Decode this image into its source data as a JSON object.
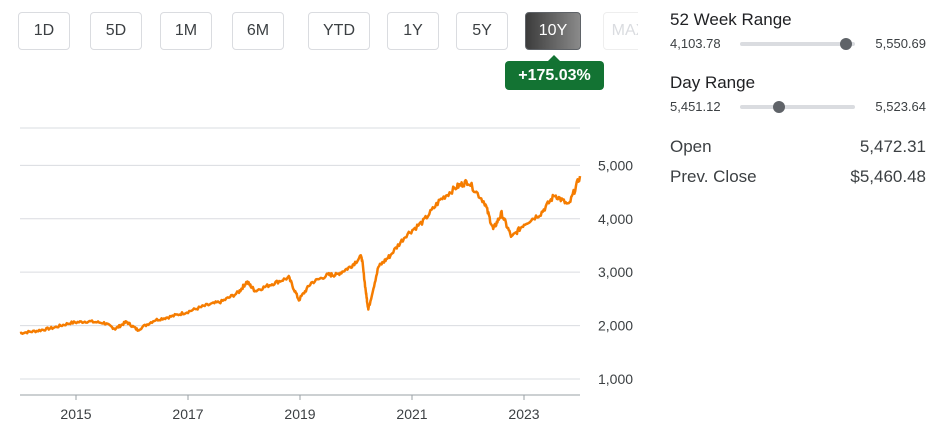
{
  "range_buttons": [
    {
      "label": "1D",
      "active": false
    },
    {
      "label": "5D",
      "active": false
    },
    {
      "label": "1M",
      "active": false
    },
    {
      "label": "6M",
      "active": false
    },
    {
      "label": "YTD",
      "active": false
    },
    {
      "label": "1Y",
      "active": false
    },
    {
      "label": "5Y",
      "active": false
    },
    {
      "label": "10Y",
      "active": true
    },
    {
      "label": "MAX",
      "active": false
    }
  ],
  "change_badge": "+175.03%",
  "week52": {
    "title": "52 Week Range",
    "low": "4,103.78",
    "high": "5,550.69",
    "position": 0.92
  },
  "day_range": {
    "title": "Day Range",
    "low": "5,451.12",
    "high": "5,523.64",
    "position": 0.34
  },
  "stats": [
    {
      "label": "Open",
      "value": "5,472.31"
    },
    {
      "label": "Prev. Close",
      "value": "$5,460.48"
    }
  ],
  "colors": {
    "line": "#f57c00",
    "badge": "#137333",
    "grid": "#dadce0"
  },
  "chart_data": {
    "type": "line",
    "title": "",
    "xlabel": "",
    "ylabel": "",
    "xlim": [
      2014.0,
      2024.0
    ],
    "ylim": [
      700,
      5700
    ],
    "yticks": [
      1000,
      2000,
      3000,
      4000,
      5000
    ],
    "ytick_labels": [
      "1,000",
      "2,000",
      "3,000",
      "4,000",
      "5,000"
    ],
    "xticks": [
      2015,
      2017,
      2019,
      2021,
      2023
    ],
    "xtick_labels": [
      "2015",
      "2017",
      "2019",
      "2021",
      "2023"
    ],
    "grid": true,
    "series": [
      {
        "x": [
          2014.0,
          2014.3,
          2014.6,
          2014.9,
          2015.2,
          2015.5,
          2015.7,
          2015.9,
          2016.1,
          2016.4,
          2016.7,
          2017.0,
          2017.3,
          2017.6,
          2017.9,
          2018.05,
          2018.2,
          2018.5,
          2018.8,
          2018.98,
          2019.2,
          2019.5,
          2019.65,
          2019.9,
          2020.1,
          2020.18,
          2020.22,
          2020.4,
          2020.6,
          2020.9,
          2021.2,
          2021.5,
          2021.8,
          2022.0,
          2022.3,
          2022.45,
          2022.6,
          2022.78,
          2023.0,
          2023.3,
          2023.55,
          2023.8,
          2024.0
        ],
        "values": [
          1860,
          1900,
          1960,
          2050,
          2080,
          2050,
          1940,
          2070,
          1920,
          2100,
          2170,
          2260,
          2370,
          2450,
          2620,
          2820,
          2650,
          2780,
          2900,
          2480,
          2800,
          2950,
          2950,
          3100,
          3300,
          2600,
          2300,
          3100,
          3300,
          3700,
          3950,
          4350,
          4600,
          4700,
          4300,
          3800,
          4100,
          3650,
          3900,
          4100,
          4450,
          4250,
          4800
        ]
      }
    ]
  }
}
